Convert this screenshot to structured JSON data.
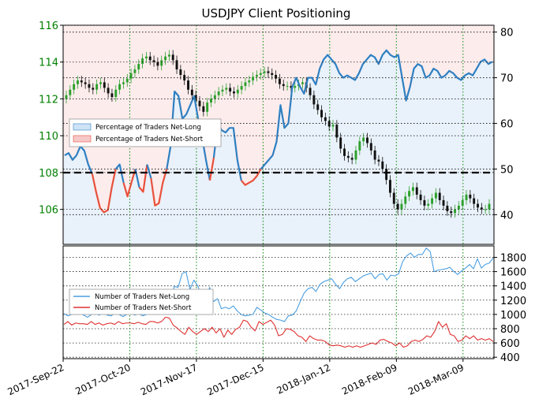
{
  "colors": {
    "long_blue": "#2f7fc1",
    "short_red": "#e8513c",
    "long_fill": "#e9f1fa",
    "short_fill": "#fdecec",
    "candle_up": "#2ca02c",
    "candle_down": "#111111",
    "left_axis_text": "#008000",
    "grid_green": "#0a8a0a",
    "bottom_long": "#4a9ee0",
    "bottom_short": "#e03030"
  },
  "chart_data": [
    {
      "type": "line",
      "title": "USDJPY Client Positioning",
      "x_range": [
        "2017-09-22",
        "2018-03-22"
      ],
      "x_ticks": [
        "2017-Sep-22",
        "2017-Oct-20",
        "2017-Nov-17",
        "2017-Dec-15",
        "2018-Jan-12",
        "2018-Feb-09",
        "2018-Mar-09"
      ],
      "price_axis": {
        "ylim": [
          104.1,
          116.0
        ],
        "ticks": [
          "106",
          "108",
          "110",
          "112",
          "114",
          "116"
        ]
      },
      "percent_axis": {
        "ylim": [
          33.5,
          81.5
        ],
        "ticks": [
          "40",
          "50",
          "60",
          "70",
          "80"
        ]
      },
      "reference_line": 50,
      "legend": [
        "Percentage of Traders Net-Long",
        "Percentage of Traders Net-Short"
      ],
      "grid": true,
      "price_closes": [
        112.2,
        112.5,
        112.8,
        113.0,
        112.9,
        112.8,
        112.6,
        112.5,
        112.8,
        112.9,
        112.6,
        112.3,
        112.1,
        112.5,
        112.8,
        112.9,
        113.1,
        113.4,
        113.6,
        113.9,
        114.2,
        114.3,
        114.1,
        114.0,
        113.8,
        114.1,
        114.3,
        114.4,
        114.1,
        113.6,
        113.3,
        113.0,
        112.5,
        112.2,
        111.9,
        111.6,
        111.3,
        111.8,
        112.0,
        112.2,
        112.4,
        112.5,
        112.6,
        112.4,
        112.3,
        112.5,
        112.7,
        112.9,
        113.0,
        113.2,
        113.3,
        113.4,
        113.5,
        113.4,
        113.3,
        113.1,
        112.8,
        112.7,
        112.7,
        112.6,
        112.7,
        112.8,
        112.9,
        112.6,
        112.2,
        111.7,
        111.4,
        111.0,
        110.8,
        110.5,
        110.6,
        109.9,
        109.3,
        108.9,
        108.8,
        108.7,
        109.2,
        109.7,
        109.9,
        109.6,
        109.2,
        108.7,
        108.6,
        108.2,
        107.6,
        106.9,
        106.3,
        106.0,
        106.3,
        106.7,
        107.0,
        107.2,
        106.8,
        106.5,
        106.2,
        106.3,
        106.6,
        106.9,
        106.5,
        106.2,
        105.9,
        105.8,
        106.0,
        106.2,
        106.5,
        106.8,
        106.6,
        106.3,
        106.1,
        106.0,
        106.0,
        106.3
      ],
      "series": [
        {
          "name": "Percentage of Traders Net-Long",
          "values": [
            53.0,
            53.5,
            52.0,
            53.0,
            55.0,
            54.0,
            51.0,
            49.0,
            45.0,
            41.5,
            40.5,
            41.0,
            46.0,
            50.0,
            51.0,
            47.0,
            44.0,
            47.0,
            50.0,
            46.0,
            45.0,
            51.0,
            48.0,
            42.0,
            42.5,
            47.0,
            50.0,
            55.0,
            67.0,
            66.0,
            61.0,
            62.0,
            64.0,
            66.0,
            61.0,
            57.0,
            52.0,
            47.5,
            52.5,
            60.0,
            58.5,
            58.0,
            59.0,
            59.0,
            52.0,
            47.5,
            46.5,
            47.0,
            47.5,
            48.5,
            50.0,
            51.0,
            52.0,
            53.0,
            56.0,
            64.0,
            59.0,
            60.0,
            68.0,
            70.0,
            68.0,
            66.5,
            70.0,
            70.0,
            68.5,
            72.0,
            74.0,
            75.0,
            74.0,
            73.0,
            71.0,
            70.0,
            70.5,
            70.0,
            69.5,
            71.0,
            73.0,
            74.0,
            75.0,
            74.5,
            73.0,
            75.0,
            76.0,
            75.0,
            74.5,
            75.0,
            70.0,
            65.0,
            68.0,
            72.0,
            73.0,
            72.5,
            70.0,
            70.5,
            72.0,
            71.5,
            70.0,
            70.5,
            71.5,
            71.0,
            70.0,
            69.5,
            70.5,
            71.0,
            70.5,
            72.0,
            73.5,
            74.0,
            73.0,
            73.5
          ]
        },
        {
          "name": "Percentage of Traders Net-Short",
          "values": [
            47.0,
            46.5,
            48.0,
            47.0,
            45.0,
            46.0,
            49.0,
            51.0,
            55.0,
            58.5,
            59.5,
            59.0,
            54.0,
            50.0,
            49.0,
            53.0,
            56.0,
            53.0,
            50.0,
            54.0,
            55.0,
            49.0,
            52.0,
            58.0,
            57.5,
            53.0,
            50.0,
            45.0,
            33.0,
            34.0,
            39.0,
            38.0,
            36.0,
            34.0,
            39.0,
            43.0,
            48.0,
            52.5,
            47.5,
            40.0,
            41.5,
            42.0,
            41.0,
            41.0,
            48.0,
            52.5,
            53.5,
            53.0,
            52.5,
            51.5,
            50.0,
            49.0,
            48.0,
            47.0,
            44.0,
            36.0,
            41.0,
            40.0,
            32.0,
            30.0,
            32.0,
            33.5,
            30.0,
            30.0,
            31.5,
            28.0,
            26.0,
            25.0,
            26.0,
            27.0,
            29.0,
            30.0,
            29.5,
            30.0,
            30.5,
            29.0,
            27.0,
            26.0,
            25.0,
            25.5,
            27.0,
            25.0,
            24.0,
            25.0,
            25.5,
            25.0,
            30.0,
            35.0,
            32.0,
            28.0,
            27.0,
            27.5,
            30.0,
            29.5,
            28.0,
            28.5,
            30.0,
            29.5,
            28.5,
            29.0,
            30.0,
            30.5,
            29.5,
            29.0,
            29.5,
            28.0,
            26.5,
            26.0,
            27.0,
            26.5
          ]
        }
      ]
    },
    {
      "type": "line",
      "title": "",
      "y_ticks": [
        "400",
        "600",
        "800",
        "1000",
        "1200",
        "1400",
        "1600",
        "1800"
      ],
      "ylim": [
        380,
        1960
      ],
      "legend": [
        "Number of Traders Net-Long",
        "Number of Traders Net-Short"
      ],
      "grid": true,
      "series": [
        {
          "name": "Number of Traders Net-Long",
          "values": [
            1010,
            980,
            1000,
            1050,
            1020,
            990,
            960,
            1000,
            1010,
            990,
            1040,
            990,
            980,
            1020,
            1000,
            970,
            1000,
            1030,
            990,
            1010,
            980,
            1000,
            1060,
            1050,
            1000,
            1020,
            1080,
            1140,
            1390,
            1380,
            1570,
            1600,
            1350,
            1480,
            1400,
            1250,
            1210,
            1380,
            1180,
            1220,
            1080,
            1100,
            1080,
            1120,
            1050,
            1000,
            980,
            990,
            1000,
            1100,
            1060,
            1020,
            1000,
            960,
            930,
            920,
            900,
            980,
            990,
            1050,
            1180,
            1300,
            1360,
            1380,
            1320,
            1420,
            1460,
            1480,
            1500,
            1420,
            1360,
            1450,
            1500,
            1520,
            1460,
            1500,
            1540,
            1560,
            1580,
            1500,
            1560,
            1570,
            1480,
            1550,
            1540,
            1570,
            1740,
            1820,
            1860,
            1800,
            1840,
            1840,
            1930,
            1880,
            1600,
            1620,
            1630,
            1640,
            1660,
            1600,
            1560,
            1610,
            1650,
            1700,
            1640,
            1780,
            1650,
            1700,
            1720,
            1790
          ]
        },
        {
          "name": "Number of Traders Net-Short",
          "values": [
            860,
            900,
            850,
            880,
            870,
            870,
            860,
            900,
            860,
            880,
            850,
            870,
            880,
            860,
            900,
            870,
            880,
            880,
            870,
            890,
            870,
            860,
            900,
            900,
            880,
            900,
            960,
            950,
            850,
            810,
            760,
            720,
            820,
            760,
            720,
            760,
            800,
            760,
            820,
            740,
            800,
            680,
            780,
            720,
            790,
            820,
            920,
            900,
            820,
            770,
            900,
            860,
            890,
            920,
            850,
            700,
            720,
            800,
            790,
            760,
            700,
            680,
            620,
            700,
            660,
            640,
            640,
            620,
            570,
            560,
            570,
            560,
            540,
            560,
            540,
            560,
            540,
            560,
            580,
            600,
            580,
            640,
            650,
            620,
            600,
            560,
            600,
            540,
            560,
            620,
            640,
            620,
            650,
            700,
            680,
            760,
            900,
            820,
            870,
            720,
            700,
            620,
            640,
            700,
            660,
            700,
            640,
            660,
            640,
            660,
            620
          ]
        }
      ]
    }
  ]
}
